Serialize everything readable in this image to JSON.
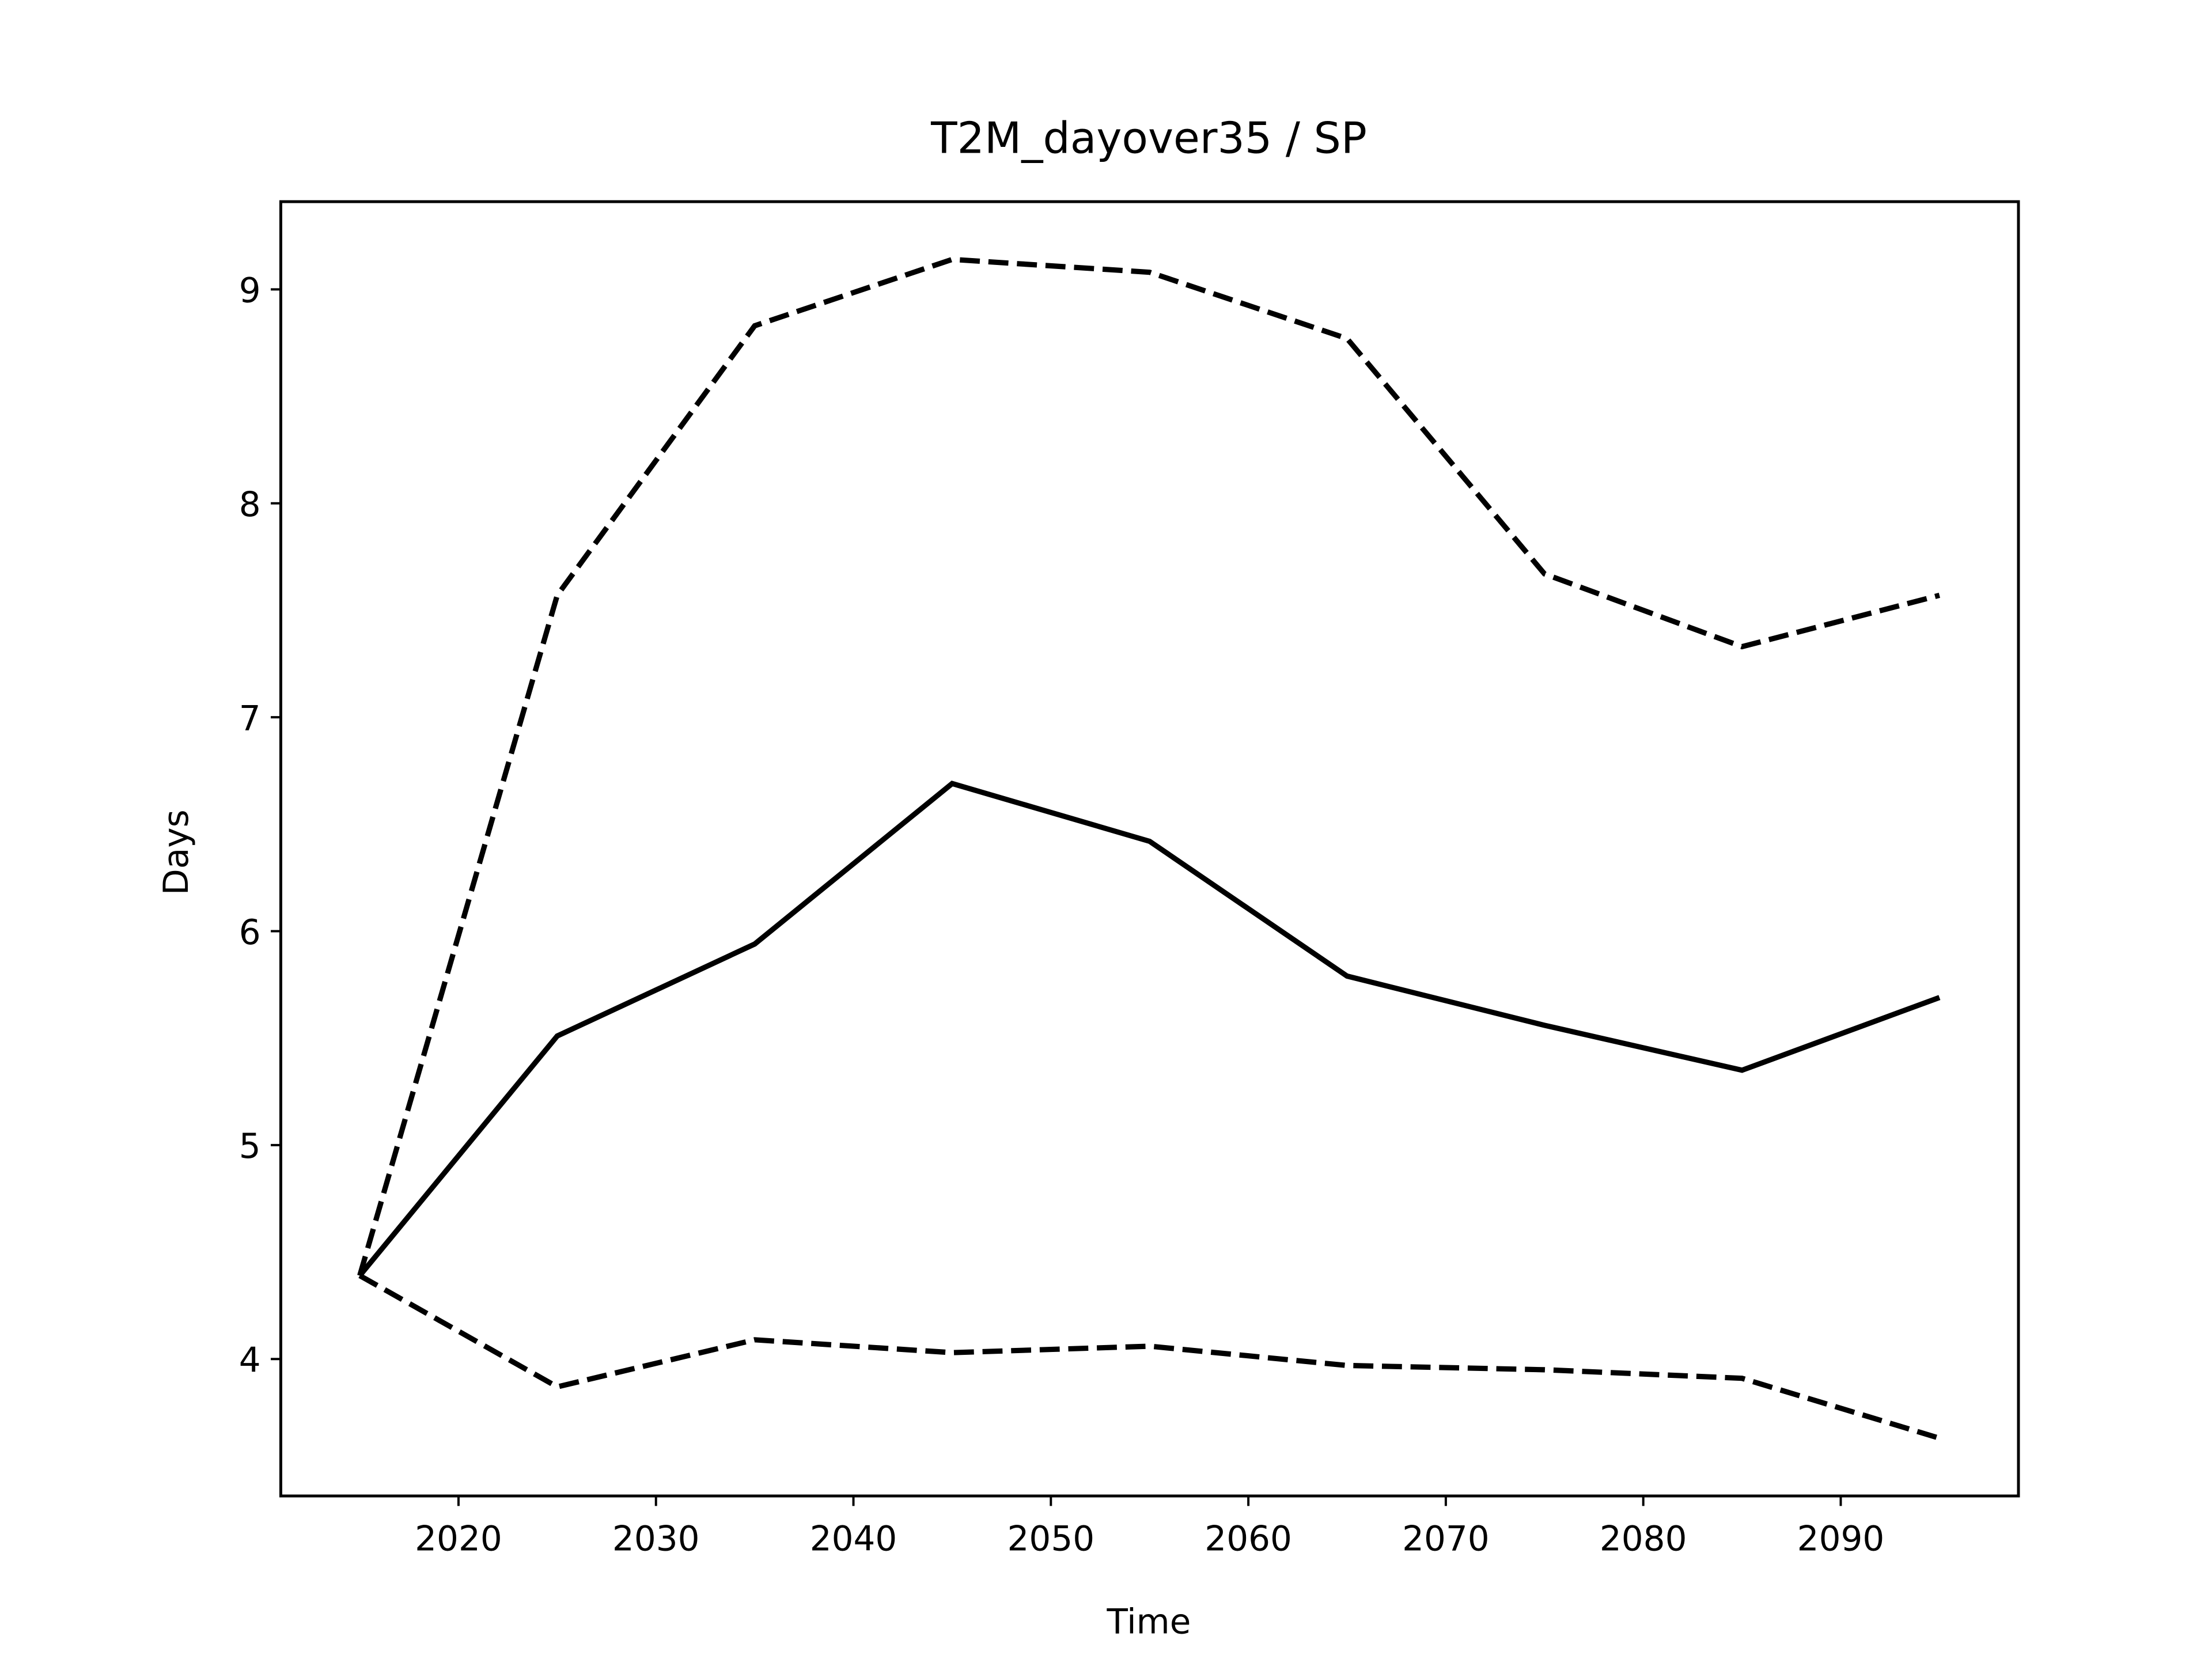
{
  "chart_data": {
    "type": "line",
    "title": "T2M_dayover35 / SP",
    "x_label": "Time",
    "y_label": "Days",
    "x": [
      2015,
      2025,
      2035,
      2045,
      2055,
      2065,
      2075,
      2085,
      2095
    ],
    "series": [
      {
        "color": "#000000",
        "linestyle": "solid",
        "values": [
          4.39,
          5.51,
          5.94,
          6.69,
          6.42,
          5.79,
          5.56,
          5.35,
          5.69
        ]
      },
      {
        "color": "#000000",
        "linestyle": "dashed",
        "values": [
          4.39,
          7.57,
          8.83,
          9.14,
          9.08,
          8.77,
          7.67,
          7.33,
          7.57
        ]
      },
      {
        "color": "#000000",
        "linestyle": "dashed",
        "values": [
          4.39,
          3.87,
          4.09,
          4.03,
          4.06,
          3.97,
          3.95,
          3.91,
          3.63
        ]
      }
    ],
    "xlim": [
      2011,
      2099
    ],
    "xticks": [
      2020,
      2030,
      2040,
      2050,
      2060,
      2070,
      2080,
      2090
    ],
    "ylim": [
      3.36,
      9.41
    ],
    "yticks": [
      4,
      5,
      6,
      7,
      8,
      9
    ],
    "grid": false
  }
}
